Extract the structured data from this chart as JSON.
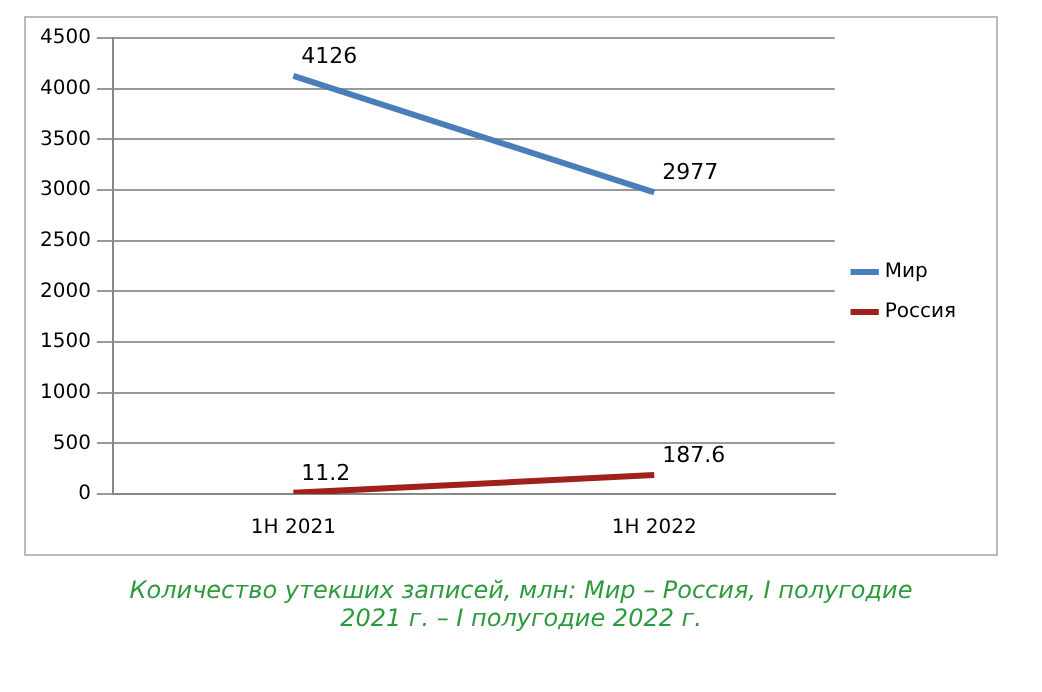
{
  "chart_data": {
    "type": "line",
    "categories": [
      "1H 2021",
      "1H 2022"
    ],
    "series": [
      {
        "name": "Мир",
        "color": "#4a7ebb",
        "values": [
          4126,
          2977
        ]
      },
      {
        "name": "Россия",
        "color": "#a0201c",
        "values": [
          11.2,
          187.6
        ]
      }
    ],
    "ylim": [
      0,
      4500
    ],
    "yticks": [
      0,
      500,
      1000,
      1500,
      2000,
      2500,
      3000,
      3500,
      4000,
      4500
    ],
    "grid": "y",
    "legend": "right",
    "marker": "none",
    "line_style": "solid",
    "data_labels": true,
    "annotations": [
      "Количество утекших записей, млн: Мир – Россия, I полугодие 2021 г. – I полугодие 2022 г."
    ]
  }
}
